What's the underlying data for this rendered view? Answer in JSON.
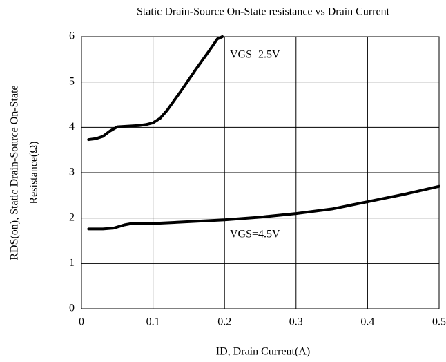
{
  "chart_data": {
    "type": "line",
    "title": "Static Drain-Source On-State resistance vs Drain Current",
    "xlabel": "ID, Drain Current(A)",
    "ylabel": [
      "RDS(on), Static Drain-Source On-State",
      "Resistance(Ω)"
    ],
    "annotations": [
      "VGS=2.5V",
      "VGS=4.5V"
    ],
    "xlim": [
      0,
      0.5
    ],
    "xticks": [
      0,
      0.1,
      0.2,
      0.3,
      0.4,
      0.5
    ],
    "ylim": [
      0,
      6
    ],
    "yticks": [
      0,
      1,
      2,
      3,
      4,
      5,
      6
    ],
    "grid": true,
    "series": [
      {
        "name": "VGS=2.5V",
        "color": "#000000",
        "x": [
          0.01,
          0.02,
          0.03,
          0.04,
          0.05,
          0.06,
          0.07,
          0.08,
          0.09,
          0.1,
          0.11,
          0.12,
          0.13,
          0.14,
          0.15,
          0.16,
          0.17,
          0.18,
          0.19,
          0.197
        ],
        "values": [
          3.73,
          3.75,
          3.8,
          3.92,
          4.01,
          4.02,
          4.03,
          4.04,
          4.06,
          4.1,
          4.2,
          4.38,
          4.6,
          4.82,
          5.05,
          5.28,
          5.5,
          5.72,
          5.95,
          6
        ]
      },
      {
        "name": "VGS=4.5V",
        "color": "#000000",
        "x": [
          0.01,
          0.03,
          0.045,
          0.06,
          0.07,
          0.1,
          0.15,
          0.2,
          0.25,
          0.3,
          0.35,
          0.4,
          0.45,
          0.5
        ],
        "values": [
          1.76,
          1.76,
          1.78,
          1.85,
          1.88,
          1.88,
          1.92,
          1.96,
          2.02,
          2.1,
          2.2,
          2.36,
          2.52,
          2.7
        ]
      }
    ]
  }
}
